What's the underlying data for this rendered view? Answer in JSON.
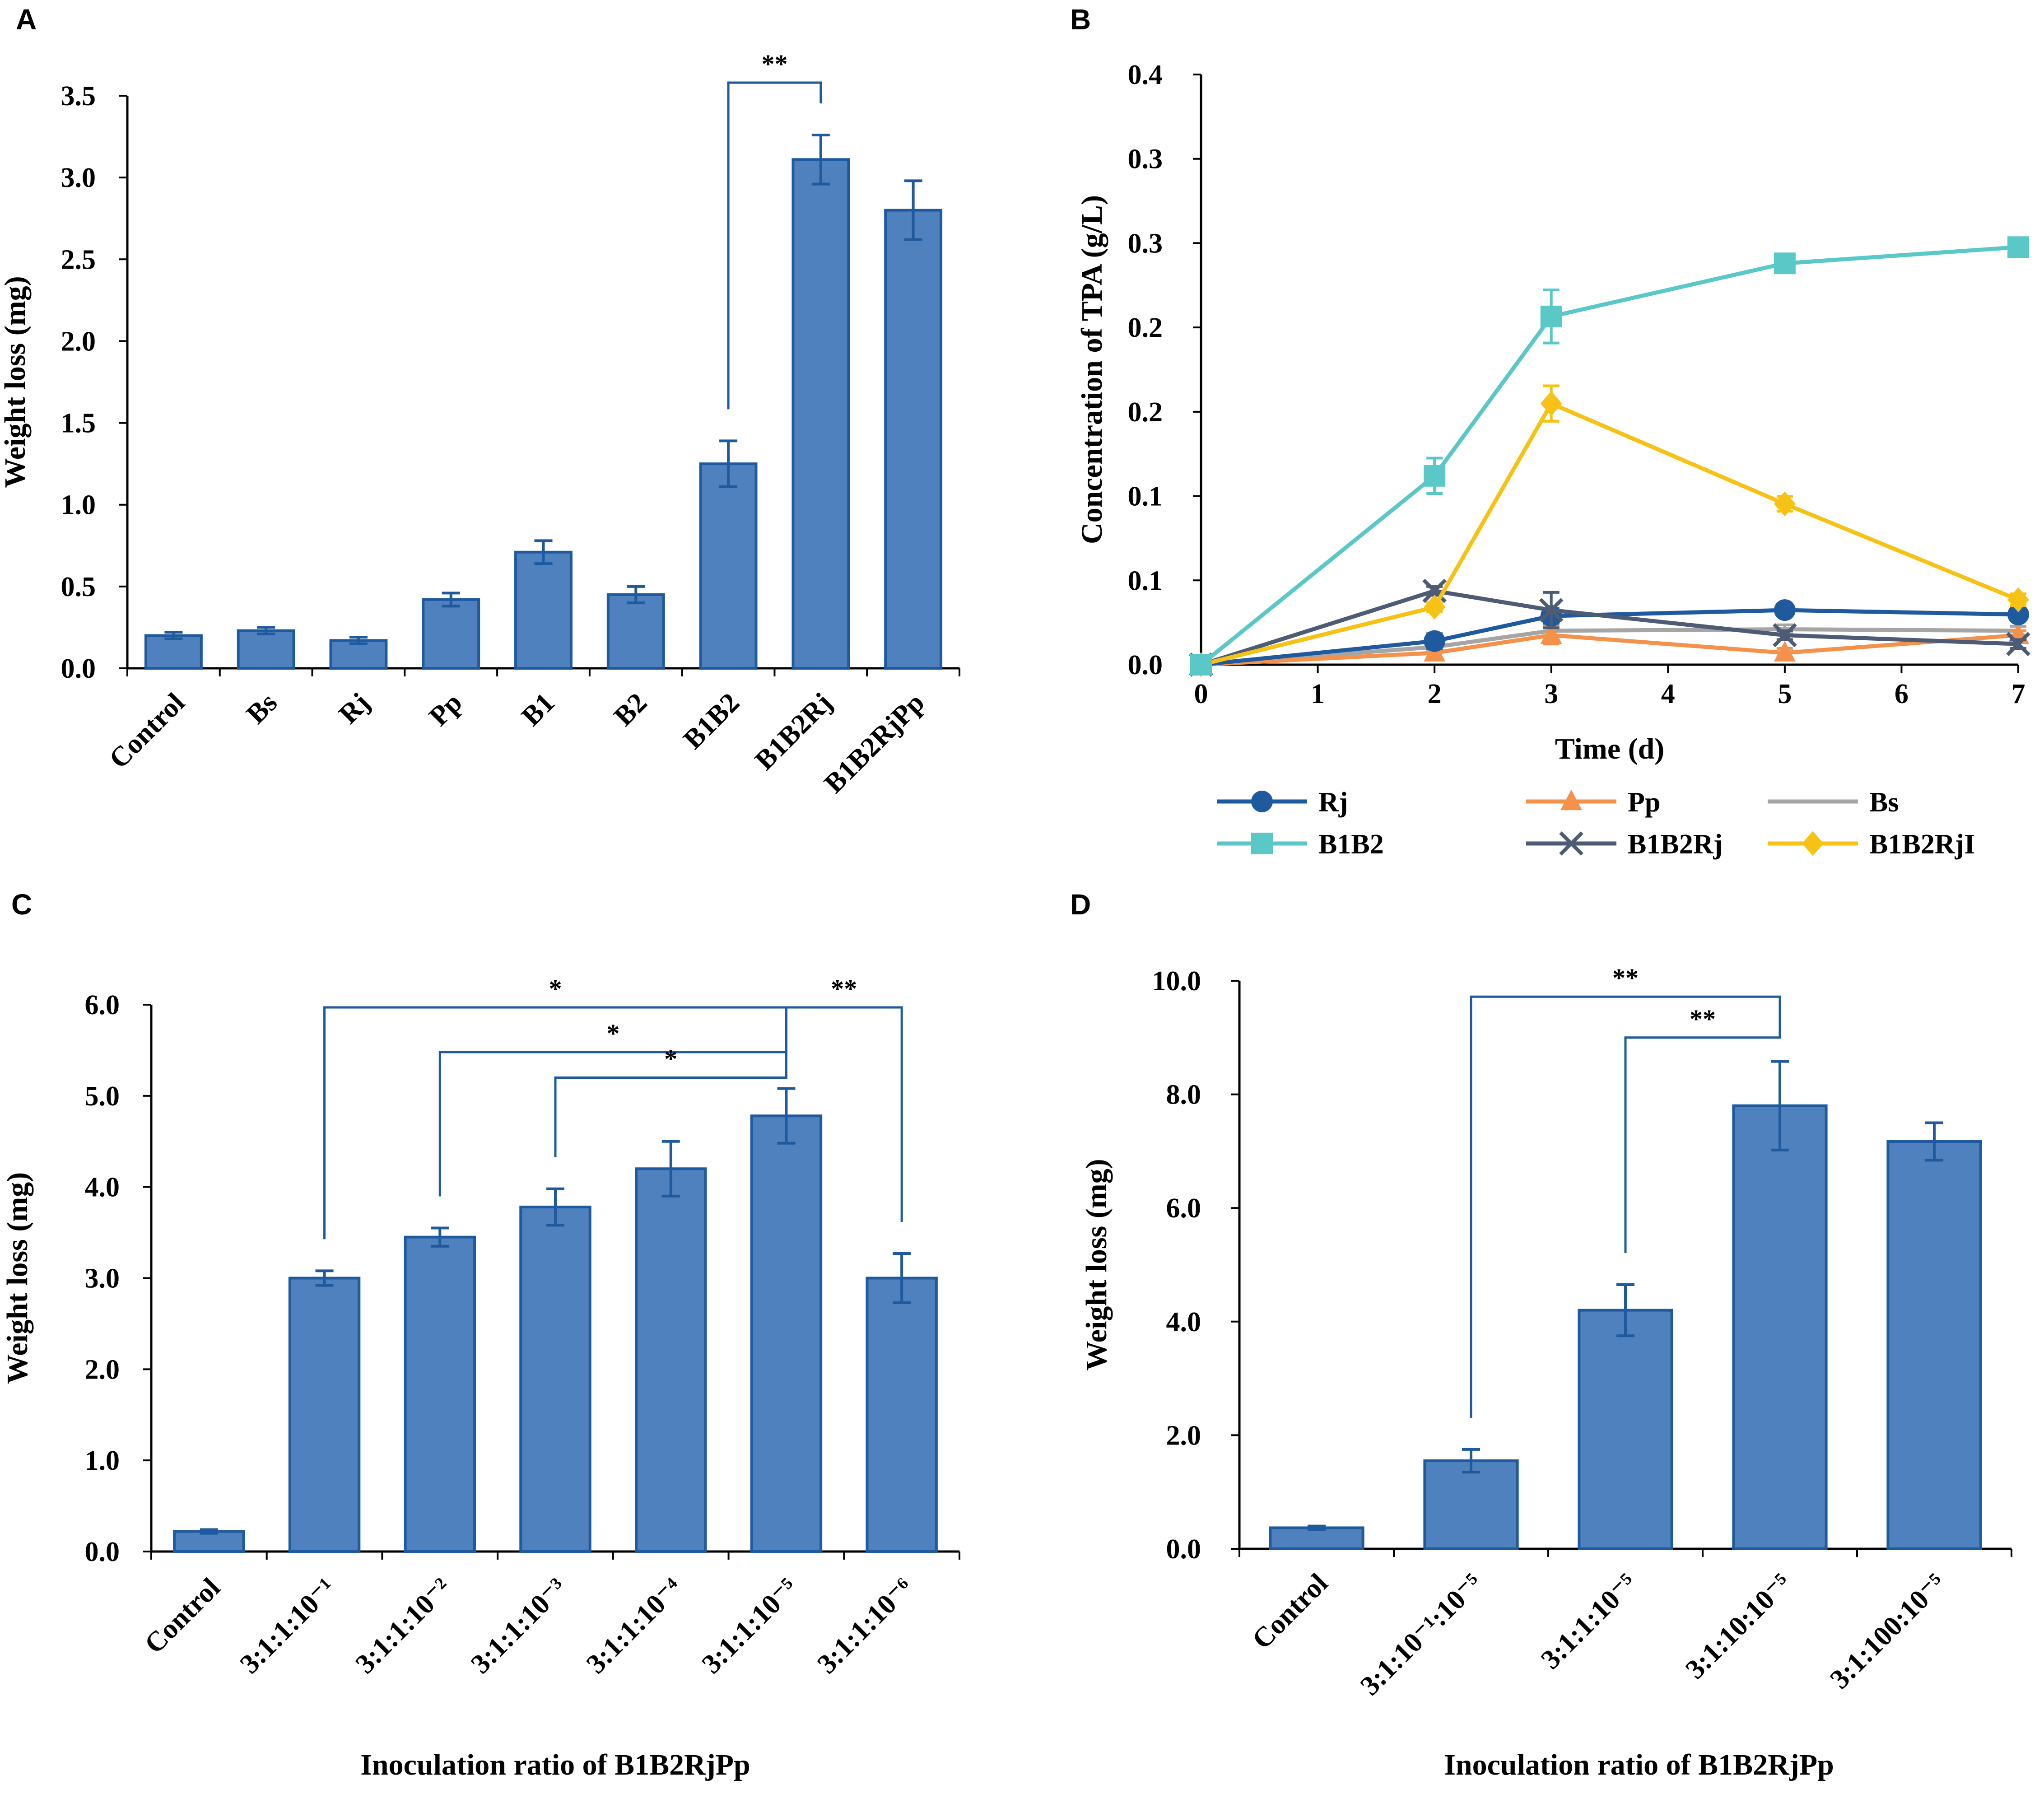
{
  "colors": {
    "bar_fill": "#4e81bd",
    "bar_stroke": "#1f5a9e",
    "bracket": "#1f5a9e",
    "axis": "#000000"
  },
  "chart_data": [
    {
      "id": "A",
      "panel_label": "A",
      "type": "bar",
      "categories": [
        "Control",
        "Bs",
        "Rj",
        "Pp",
        "B1",
        "B2",
        "B1B2",
        "B1B2Rj",
        "B1B2RjPp"
      ],
      "values": [
        0.2,
        0.23,
        0.17,
        0.42,
        0.71,
        0.45,
        1.25,
        3.11,
        2.8
      ],
      "errors": [
        0.02,
        0.02,
        0.02,
        0.04,
        0.07,
        0.05,
        0.14,
        0.15,
        0.18
      ],
      "ylabel": "Weight loss (mg)",
      "xlabel": "",
      "ylim": [
        0,
        3.5
      ],
      "yticks": [
        "0.0",
        "0.5",
        "1.0",
        "1.5",
        "2.0",
        "2.5",
        "3.0",
        "3.5"
      ],
      "significance": [
        {
          "from": "B1B2",
          "to": "B1B2Rj",
          "label": "**",
          "level": 3.58
        }
      ]
    },
    {
      "id": "B",
      "panel_label": "B",
      "type": "line",
      "x": [
        0,
        2,
        3,
        5,
        7
      ],
      "xlim": [
        0,
        7
      ],
      "xticks": [
        "0",
        "1",
        "2",
        "3",
        "4",
        "5",
        "6",
        "7"
      ],
      "ylim": [
        0,
        0.4
      ],
      "yticks": [
        "0.0",
        "0.1",
        "0.1",
        "0.2",
        "0.2",
        "0.3",
        "0.3",
        "0.4"
      ],
      "xlabel": "Time (d)",
      "ylabel": "Concentration of TPA (g/L)",
      "legend_position": "bottom",
      "series": [
        {
          "name": "Rj",
          "color": "#1f5a9e",
          "marker": "circle",
          "values": [
            0.0,
            0.016,
            0.033,
            0.037,
            0.034
          ],
          "errors": [
            0.002,
            0.005,
            0.005,
            0.003,
            0.003
          ]
        },
        {
          "name": "Pp",
          "color": "#f4914b",
          "marker": "triangle",
          "values": [
            0.0,
            0.008,
            0.02,
            0.008,
            0.02
          ],
          "errors": [
            0.002,
            0.003,
            0.006,
            0.003,
            0.003
          ]
        },
        {
          "name": "Bs",
          "color": "#a5a5a5",
          "marker": "none",
          "values": [
            0.0,
            0.012,
            0.023,
            0.024,
            0.023
          ],
          "errors": [
            0.002,
            0.003,
            0.005,
            0.003,
            0.003
          ]
        },
        {
          "name": "B1B2",
          "color": "#5bc8c8",
          "marker": "square",
          "values": [
            0.0,
            0.128,
            0.236,
            0.272,
            0.283
          ],
          "errors": [
            0.002,
            0.012,
            0.018,
            0.006,
            0.004
          ]
        },
        {
          "name": "B1B2Rj",
          "color": "#4d5b74",
          "marker": "x",
          "values": [
            0.0,
            0.05,
            0.037,
            0.02,
            0.014
          ],
          "errors": [
            0.002,
            0.003,
            0.012,
            0.003,
            0.003
          ]
        },
        {
          "name": "B1B2RjI",
          "color": "#f7c216",
          "marker": "diamond",
          "values": [
            0.0,
            0.039,
            0.177,
            0.109,
            0.044
          ],
          "errors": [
            0.002,
            0.003,
            0.012,
            0.005,
            0.004
          ]
        }
      ]
    },
    {
      "id": "C",
      "panel_label": "C",
      "type": "bar",
      "categories": [
        "Control",
        "3:1:1:10⁻¹",
        "3:1:1:10⁻²",
        "3:1:1:10⁻³",
        "3:1:1:10⁻⁴",
        "3:1:1:10⁻⁵",
        "3:1:1:10⁻⁶"
      ],
      "values": [
        0.22,
        3.0,
        3.45,
        3.78,
        4.2,
        4.78,
        3.0
      ],
      "errors": [
        0.02,
        0.08,
        0.1,
        0.2,
        0.3,
        0.3,
        0.27
      ],
      "ylabel": "Weight loss (mg)",
      "xlabel": "Inoculation ratio of B1B2RjPp",
      "ylim": [
        0,
        6
      ],
      "yticks": [
        "0.0",
        "1.0",
        "2.0",
        "3.0",
        "4.0",
        "5.0",
        "6.0"
      ],
      "significance": [
        {
          "from": "3:1:1:10⁻¹",
          "to": "3:1:1:10⁻⁵",
          "label": "*",
          "level": 5.97
        },
        {
          "from": "3:1:1:10⁻²",
          "to": "3:1:1:10⁻⁵",
          "label": "*",
          "level": 5.48
        },
        {
          "from": "3:1:1:10⁻³",
          "to": "3:1:1:10⁻⁵",
          "label": "*",
          "level": 5.2
        },
        {
          "from": "3:1:1:10⁻⁵",
          "to": "3:1:1:10⁻⁶",
          "label": "**",
          "level": 5.97
        }
      ]
    },
    {
      "id": "D",
      "panel_label": "D",
      "type": "bar",
      "categories": [
        "Control",
        "3:1:10⁻¹:10⁻⁵",
        "3:1:1:10⁻⁵",
        "3:1:10:10⁻⁵",
        "3:1:100:10⁻⁵"
      ],
      "values": [
        0.37,
        1.55,
        4.2,
        7.8,
        7.17
      ],
      "errors": [
        0.03,
        0.2,
        0.45,
        0.78,
        0.33
      ],
      "ylabel": "Weight loss (mg)",
      "xlabel": "Inoculation ratio of B1B2RjPp",
      "ylim": [
        0,
        10
      ],
      "yticks": [
        "0.0",
        "2.0",
        "4.0",
        "6.0",
        "8.0",
        "10.0"
      ],
      "significance": [
        {
          "from": "3:1:10⁻¹:10⁻⁵",
          "to": "3:1:10:10⁻⁵",
          "label": "**",
          "level": 9.72
        },
        {
          "from": "3:1:1:10⁻⁵",
          "to": "3:1:10:10⁻⁵",
          "label": "**",
          "level": 9.0
        }
      ]
    }
  ]
}
